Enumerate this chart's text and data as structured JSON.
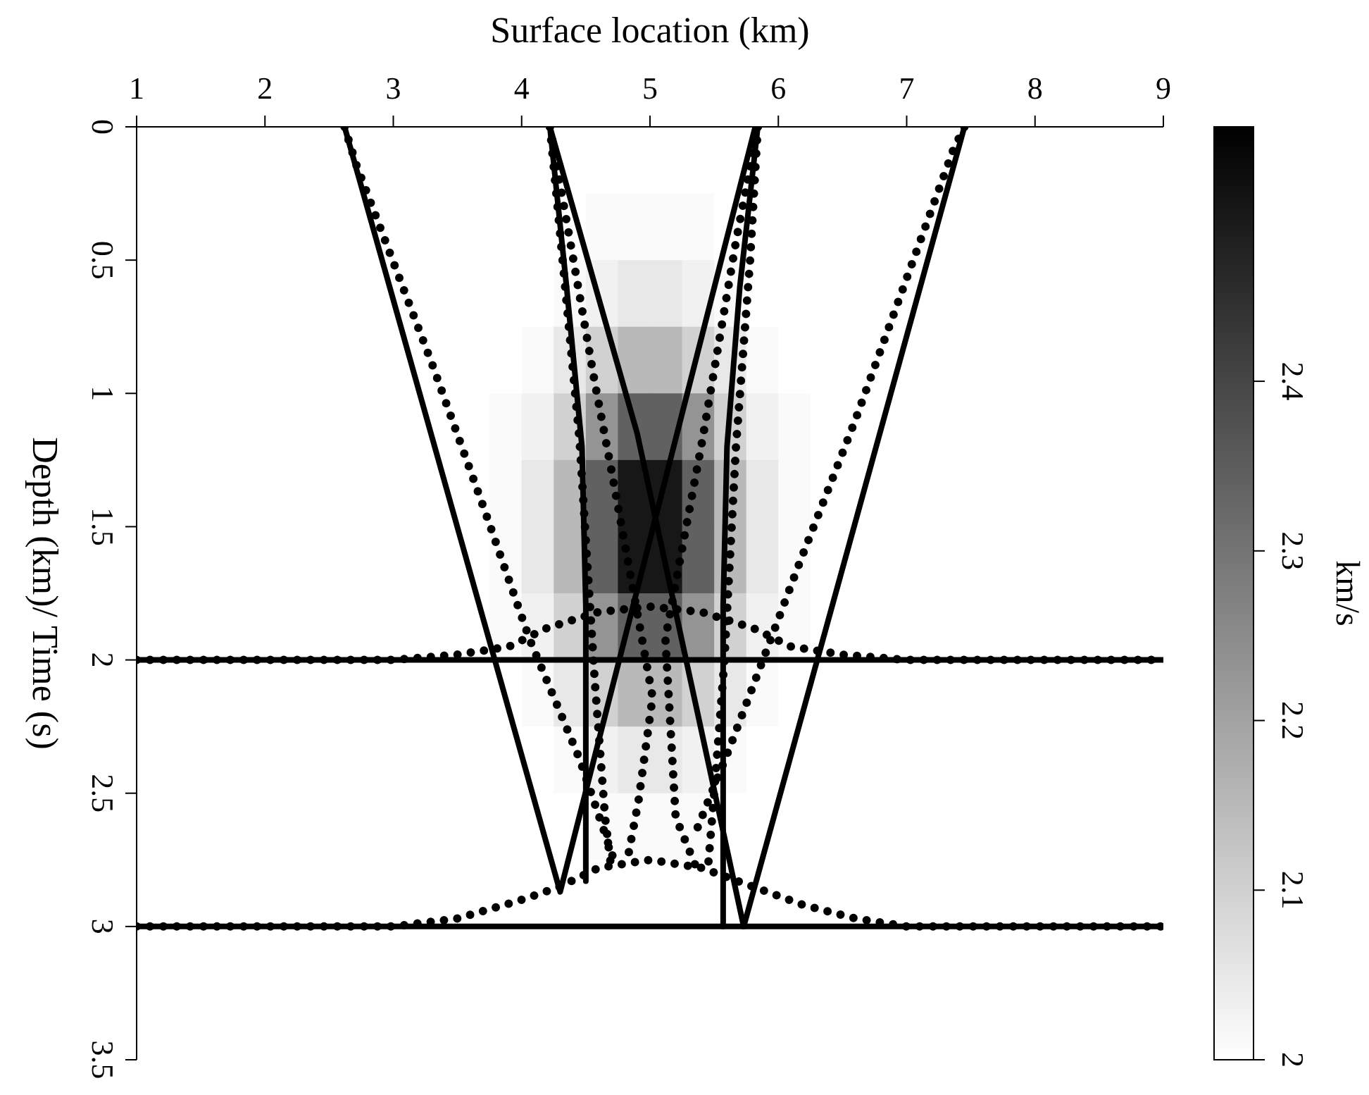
{
  "chart_data": [
    {
      "type": "line",
      "xlabel": "Surface location (km)",
      "ylabel": "Depth (km)/ Time (s)",
      "xlim": [
        1,
        9
      ],
      "xticks": [
        1,
        2,
        3,
        4,
        5,
        6,
        7,
        8,
        9
      ],
      "ylim": [
        3.5,
        0
      ],
      "yticks": [
        0,
        0.5,
        1,
        1.5,
        2,
        2.5,
        3,
        3.5
      ],
      "series": [
        {
          "line_style": "solid",
          "color": "#000000",
          "x": [
            1,
            9
          ],
          "values": [
            2,
            2
          ]
        },
        {
          "line_style": "solid",
          "color": "#000000",
          "x": [
            1,
            9
          ],
          "values": [
            3,
            3
          ]
        },
        {
          "line_style": "dotted",
          "color": "#000000",
          "x": [
            1,
            3,
            3.5,
            3.9,
            4.2,
            4.6,
            5,
            5.4,
            5.8,
            6.1,
            6.5,
            7,
            9
          ],
          "values": [
            2.0,
            2.0,
            1.98,
            1.95,
            1.88,
            1.82,
            1.8,
            1.82,
            1.88,
            1.95,
            1.98,
            2.0,
            2.0
          ]
        },
        {
          "line_style": "dotted",
          "color": "#000000",
          "x": [
            1,
            3,
            3.5,
            4.0,
            4.3,
            4.6,
            5,
            5.4,
            5.8,
            6.2,
            6.6,
            7,
            9
          ],
          "values": [
            3.0,
            3.0,
            2.97,
            2.9,
            2.85,
            2.78,
            2.75,
            2.78,
            2.85,
            2.92,
            2.97,
            3.0,
            3.0
          ]
        },
        {
          "line_style": "solid",
          "color": "#000000",
          "x": [
            2.62,
            4.3,
            5.82
          ],
          "values": [
            0,
            2.87,
            0
          ]
        },
        {
          "line_style": "solid",
          "color": "#000000",
          "x": [
            4.22,
            4.9,
            5.73,
            7.45
          ],
          "values": [
            0,
            1.15,
            3.0,
            0
          ]
        },
        {
          "line_style": "solid",
          "color": "#000000",
          "x": [
            4.22,
            4.35,
            4.47,
            4.5,
            4.5
          ],
          "values": [
            0,
            0.6,
            1.2,
            1.8,
            2.83
          ]
        },
        {
          "line_style": "solid",
          "color": "#000000",
          "x": [
            5.84,
            5.7,
            5.6,
            5.57,
            5.57
          ],
          "values": [
            0,
            0.6,
            1.2,
            1.8,
            3.0
          ]
        },
        {
          "line_style": "dotted",
          "color": "#000000",
          "x": [
            2.62,
            2.71,
            3.31,
            3.72,
            4.06,
            4.45,
            4.74
          ],
          "values": [
            0,
            0.14,
            0.9,
            1.45,
            1.92,
            2.37,
            2.78
          ]
        },
        {
          "line_style": "dotted",
          "color": "#000000",
          "x": [
            7.45,
            7.36,
            6.6,
            6.17,
            5.88,
            5.62,
            5.37
          ],
          "values": [
            0,
            0.09,
            1.1,
            1.63,
            2.0,
            2.33,
            2.63
          ]
        },
        {
          "line_style": "dotted",
          "color": "#000000",
          "x": [
            4.22,
            4.36,
            4.57,
            4.7,
            5.02,
            4.91,
            4.82
          ],
          "values": [
            0,
            0.38,
            0.96,
            1.29,
            2.14,
            2.53,
            2.76
          ]
        },
        {
          "line_style": "dotted",
          "color": "#000000",
          "x": [
            5.84,
            5.67,
            5.41,
            5.12,
            5.2,
            5.37
          ],
          "values": [
            0,
            0.43,
            1.17,
            1.92,
            2.59,
            2.79
          ]
        },
        {
          "line_style": "dotted",
          "color": "#000000",
          "x": [
            4.22,
            4.27,
            4.45,
            4.57,
            4.65,
            4.7
          ],
          "values": [
            0,
            0.25,
            1.17,
            2.08,
            2.59,
            2.79
          ]
        },
        {
          "line_style": "dotted",
          "color": "#000000",
          "x": [
            5.84,
            5.78,
            5.67,
            5.58,
            5.5,
            5.45
          ],
          "values": [
            0,
            0.5,
            1.2,
            2.0,
            2.5,
            2.79
          ]
        }
      ]
    },
    {
      "type": "heatmap",
      "clabel": "km/s",
      "clim": [
        2,
        2.55
      ],
      "cticks": [
        2,
        2.1,
        2.2,
        2.3,
        2.4
      ],
      "categories": [
        null,
        null,
        null,
        null,
        null,
        null,
        null,
        null,
        null,
        null,
        null,
        null,
        null,
        null,
        null,
        null,
        null,
        null,
        null,
        null,
        null,
        null,
        null,
        null,
        null,
        null,
        null,
        null,
        null,
        null,
        null,
        null
      ],
      "y_categories": [
        null,
        null,
        null,
        null,
        null,
        null,
        null,
        null,
        null,
        null,
        null,
        null,
        null,
        null
      ],
      "cells": [
        [
          2,
          2,
          2,
          2,
          2,
          2,
          2,
          2,
          2,
          2,
          2,
          2,
          2,
          2,
          2,
          2,
          2,
          2,
          2,
          2,
          2,
          2,
          2,
          2,
          2,
          2,
          2,
          2,
          2,
          2,
          2,
          2
        ],
        [
          2,
          2,
          2,
          2,
          2,
          2,
          2,
          2,
          2,
          2,
          2,
          2.0,
          2.0,
          2.0,
          2.01,
          2.01,
          2.01,
          2.01,
          2.0,
          2.0,
          2.0,
          2,
          2,
          2,
          2,
          2,
          2,
          2,
          2,
          2,
          2,
          2
        ],
        [
          2,
          2,
          2,
          2,
          2,
          2,
          2,
          2,
          2,
          2,
          2,
          2.0,
          2.0,
          2.01,
          2.03,
          2.05,
          2.05,
          2.03,
          2.01,
          2.0,
          2.0,
          2,
          2,
          2,
          2,
          2,
          2,
          2,
          2,
          2,
          2,
          2
        ],
        [
          2,
          2,
          2,
          2,
          2,
          2,
          2,
          2,
          2,
          2,
          2,
          2.0,
          2.01,
          2.05,
          2.1,
          2.15,
          2.15,
          2.1,
          2.05,
          2.01,
          2.0,
          2,
          2,
          2,
          2,
          2,
          2,
          2,
          2,
          2,
          2,
          2
        ],
        [
          2,
          2,
          2,
          2,
          2,
          2,
          2,
          2,
          2,
          2,
          2,
          2.01,
          2.03,
          2.1,
          2.23,
          2.34,
          2.34,
          2.23,
          2.1,
          2.03,
          2.01,
          2,
          2,
          2,
          2,
          2,
          2,
          2,
          2,
          2,
          2,
          2
        ],
        [
          2,
          2,
          2,
          2,
          2,
          2,
          2,
          2,
          2,
          2,
          2,
          2.01,
          2.05,
          2.15,
          2.34,
          2.5,
          2.5,
          2.34,
          2.15,
          2.05,
          2.01,
          2,
          2,
          2,
          2,
          2,
          2,
          2,
          2,
          2,
          2,
          2
        ],
        [
          2,
          2,
          2,
          2,
          2,
          2,
          2,
          2,
          2,
          2,
          2,
          2.01,
          2.05,
          2.15,
          2.34,
          2.5,
          2.5,
          2.34,
          2.15,
          2.05,
          2.01,
          2,
          2,
          2,
          2,
          2,
          2,
          2,
          2,
          2,
          2,
          2
        ],
        [
          2,
          2,
          2,
          2,
          2,
          2,
          2,
          2,
          2,
          2,
          2,
          2.01,
          2.03,
          2.1,
          2.23,
          2.34,
          2.34,
          2.23,
          2.1,
          2.03,
          2.01,
          2,
          2,
          2,
          2,
          2,
          2,
          2,
          2,
          2,
          2,
          2
        ],
        [
          2,
          2,
          2,
          2,
          2,
          2,
          2,
          2,
          2,
          2,
          2,
          2.0,
          2.01,
          2.05,
          2.1,
          2.15,
          2.15,
          2.1,
          2.05,
          2.01,
          2.0,
          2,
          2,
          2,
          2,
          2,
          2,
          2,
          2,
          2,
          2,
          2
        ],
        [
          2,
          2,
          2,
          2,
          2,
          2,
          2,
          2,
          2,
          2,
          2,
          2.0,
          2.0,
          2.01,
          2.03,
          2.05,
          2.05,
          2.03,
          2.01,
          2.0,
          2.0,
          2,
          2,
          2,
          2,
          2,
          2,
          2,
          2,
          2,
          2,
          2
        ],
        [
          2,
          2,
          2,
          2,
          2,
          2,
          2,
          2,
          2,
          2,
          2,
          2.0,
          2.0,
          2.0,
          2.01,
          2.01,
          2.01,
          2.01,
          2.0,
          2.0,
          2.0,
          2,
          2,
          2,
          2,
          2,
          2,
          2,
          2,
          2,
          2,
          2
        ],
        [
          2,
          2,
          2,
          2,
          2,
          2,
          2,
          2,
          2,
          2,
          2,
          2,
          2,
          2,
          2,
          2,
          2,
          2,
          2,
          2,
          2,
          2,
          2,
          2,
          2,
          2,
          2,
          2,
          2,
          2,
          2,
          2
        ],
        [
          2,
          2,
          2,
          2,
          2,
          2,
          2,
          2,
          2,
          2,
          2,
          2,
          2,
          2,
          2,
          2,
          2,
          2,
          2,
          2,
          2,
          2,
          2,
          2,
          2,
          2,
          2,
          2,
          2,
          2,
          2,
          2
        ],
        [
          2,
          2,
          2,
          2,
          2,
          2,
          2,
          2,
          2,
          2,
          2,
          2,
          2,
          2,
          2,
          2,
          2,
          2,
          2,
          2,
          2,
          2,
          2,
          2,
          2,
          2,
          2,
          2,
          2,
          2,
          2,
          2
        ]
      ]
    }
  ]
}
